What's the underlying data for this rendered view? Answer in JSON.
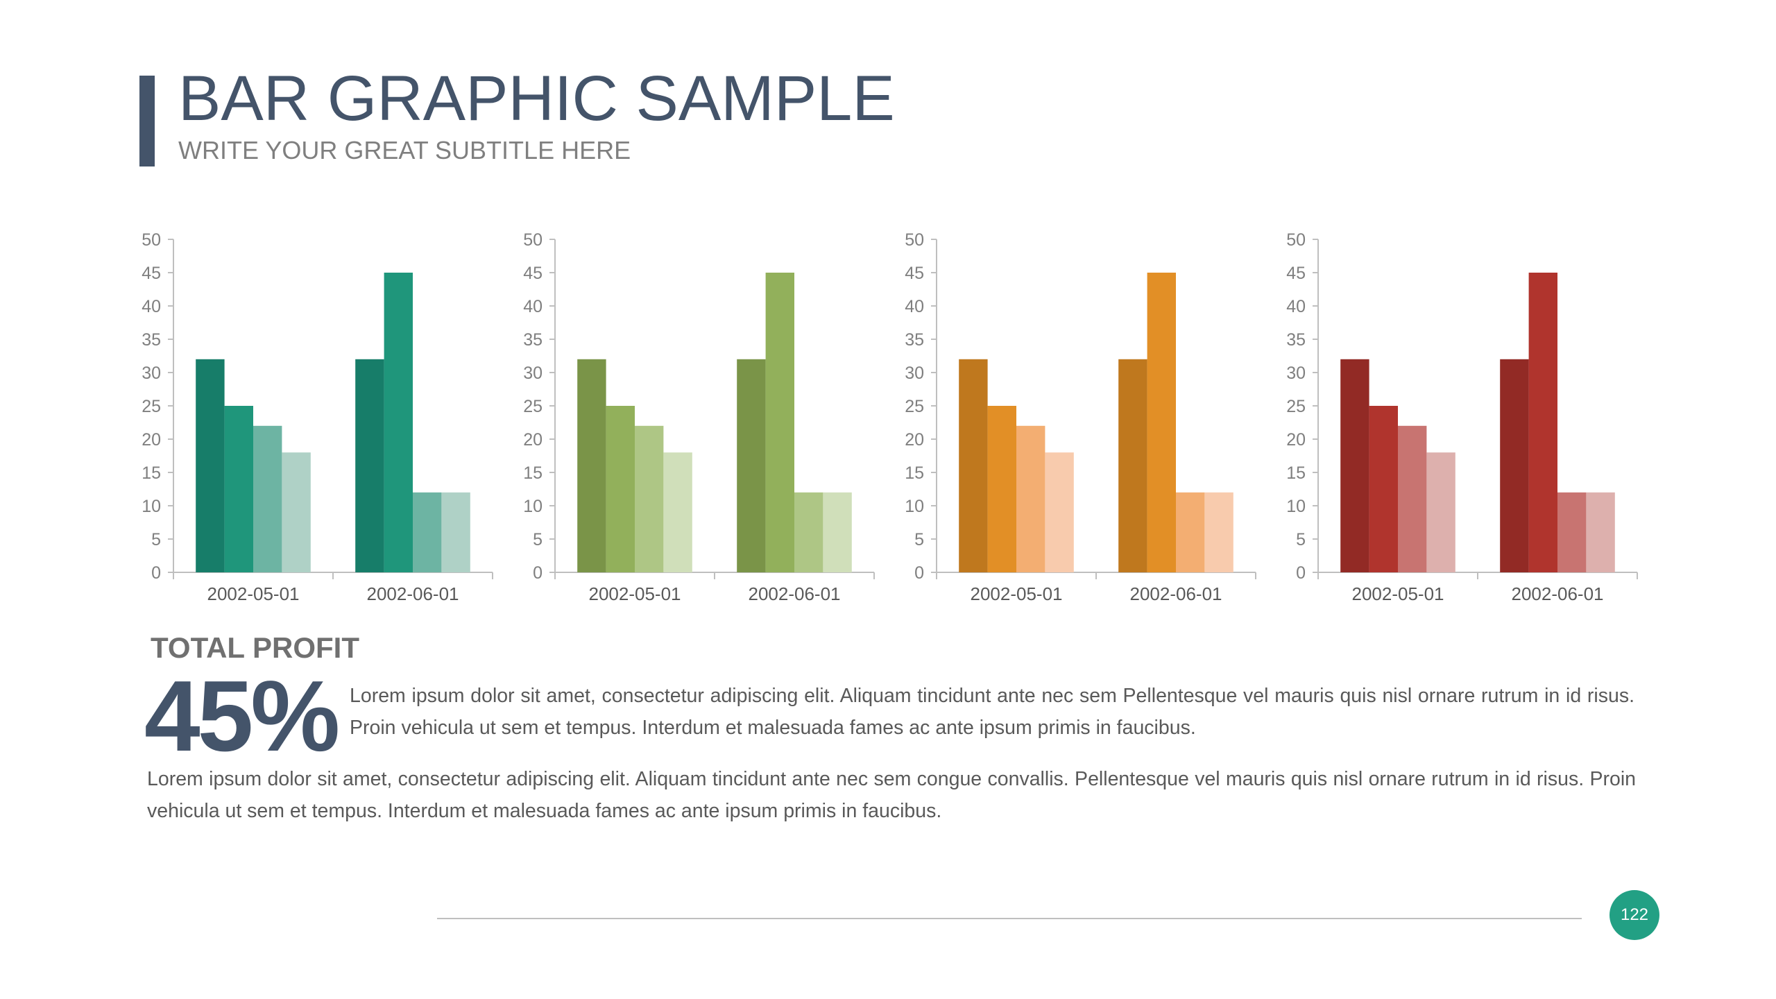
{
  "header": {
    "title": "BAR GRAPHIC SAMPLE",
    "subtitle": "WRITE YOUR GREAT SUBTITLE HERE"
  },
  "summary": {
    "label": "TOTAL PROFIT",
    "value": "45%",
    "paragraph_1": "Lorem ipsum dolor sit amet, consectetur adipiscing elit. Aliquam tincidunt ante nec sem Pellentesque vel mauris quis nisl ornare rutrum in id risus. Proin vehicula ut sem et tempus. Interdum et malesuada fames ac ante ipsum primis in faucibus.",
    "paragraph_2": "Lorem ipsum dolor sit amet, consectetur adipiscing elit. Aliquam tincidunt ante nec sem congue convallis. Pellentesque vel mauris quis nisl ornare rutrum in id risus. Proin vehicula ut sem et tempus. Interdum et malesuada fames ac ante ipsum primis in faucibus."
  },
  "footer": {
    "page_number": "122"
  },
  "colors": {
    "title": "#44546a",
    "teal": [
      "#177d69",
      "#1f967b",
      "#6db4a3",
      "#afd1c6"
    ],
    "green": [
      "#7a9448",
      "#92b05b",
      "#aec685",
      "#d0dfba"
    ],
    "orange": [
      "#bf781e",
      "#e28f26",
      "#f3ae72",
      "#f8cbad"
    ],
    "red": [
      "#922a25",
      "#b0342d",
      "#c87471",
      "#ddb0ad"
    ]
  },
  "chart_data": [
    {
      "type": "bar",
      "categories": [
        "2002-05-01",
        "2002-06-01"
      ],
      "series": [
        {
          "values": [
            32,
            32
          ],
          "color": "#177d69"
        },
        {
          "values": [
            25,
            45
          ],
          "color": "#1f967b"
        },
        {
          "values": [
            22,
            12
          ],
          "color": "#6db4a3"
        },
        {
          "values": [
            18,
            12
          ],
          "color": "#afd1c6"
        }
      ],
      "ylim": [
        0,
        50
      ],
      "yticks": [
        0,
        5,
        10,
        15,
        20,
        25,
        30,
        35,
        40,
        45,
        50
      ],
      "title": "",
      "xlabel": "",
      "ylabel": "",
      "grid": false,
      "legend": "none"
    },
    {
      "type": "bar",
      "categories": [
        "2002-05-01",
        "2002-06-01"
      ],
      "series": [
        {
          "values": [
            32,
            32
          ],
          "color": "#7a9448"
        },
        {
          "values": [
            25,
            45
          ],
          "color": "#92b05b"
        },
        {
          "values": [
            22,
            12
          ],
          "color": "#aec685"
        },
        {
          "values": [
            18,
            12
          ],
          "color": "#d0dfba"
        }
      ],
      "ylim": [
        0,
        50
      ],
      "yticks": [
        0,
        5,
        10,
        15,
        20,
        25,
        30,
        35,
        40,
        45,
        50
      ],
      "title": "",
      "xlabel": "",
      "ylabel": "",
      "grid": false,
      "legend": "none"
    },
    {
      "type": "bar",
      "categories": [
        "2002-05-01",
        "2002-06-01"
      ],
      "series": [
        {
          "values": [
            32,
            32
          ],
          "color": "#bf781e"
        },
        {
          "values": [
            25,
            45
          ],
          "color": "#e28f26"
        },
        {
          "values": [
            22,
            12
          ],
          "color": "#f3ae72"
        },
        {
          "values": [
            18,
            12
          ],
          "color": "#f8cbad"
        }
      ],
      "ylim": [
        0,
        50
      ],
      "yticks": [
        0,
        5,
        10,
        15,
        20,
        25,
        30,
        35,
        40,
        45,
        50
      ],
      "title": "",
      "xlabel": "",
      "ylabel": "",
      "grid": false,
      "legend": "none"
    },
    {
      "type": "bar",
      "categories": [
        "2002-05-01",
        "2002-06-01"
      ],
      "series": [
        {
          "values": [
            32,
            32
          ],
          "color": "#922a25"
        },
        {
          "values": [
            25,
            45
          ],
          "color": "#b0342d"
        },
        {
          "values": [
            22,
            12
          ],
          "color": "#c87471"
        },
        {
          "values": [
            18,
            12
          ],
          "color": "#ddb0ad"
        }
      ],
      "ylim": [
        0,
        50
      ],
      "yticks": [
        0,
        5,
        10,
        15,
        20,
        25,
        30,
        35,
        40,
        45,
        50
      ],
      "title": "",
      "xlabel": "",
      "ylabel": "",
      "grid": false,
      "legend": "none"
    }
  ]
}
